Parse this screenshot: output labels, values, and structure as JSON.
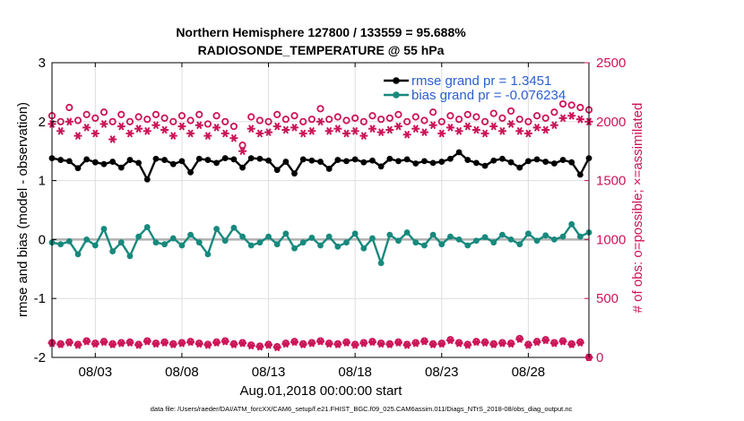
{
  "chart_data": {
    "type": "line",
    "title_line1": "Northern Hemisphere 127800 / 133559 = 95.688%",
    "title_line2": "RADIOSONDE_TEMPERATURE @ 55 hPa",
    "xlabel": "Aug.01,2018 00:00:00 start",
    "ylabel_left": "rmse and bias (model - observation)",
    "ylabel_right": "# of obs: o=possible; ×=assimilated",
    "xlim": [
      0.5,
      31.5
    ],
    "ylim_left": [
      -2,
      3
    ],
    "ylim_right": [
      0,
      2500
    ],
    "x_ticks": [
      3,
      8,
      13,
      18,
      23,
      28
    ],
    "x_tick_labels": [
      "08/03",
      "08/08",
      "08/13",
      "08/18",
      "08/23",
      "08/28"
    ],
    "y_ticks_left": [
      -2,
      -1,
      0,
      1,
      2,
      3
    ],
    "y_ticks_right": [
      0,
      500,
      1000,
      1500,
      2000,
      2500
    ],
    "grid": true,
    "legend": [
      {
        "label": "rmse grand pr = 1.3451",
        "color": "#000000"
      },
      {
        "label": "bias grand pr = -0.076234",
        "color": "#17897d"
      }
    ],
    "colors": {
      "rmse": "#000000",
      "bias": "#17897d",
      "obs": "#cc1458",
      "zero_line": "#b0b0b0",
      "grid": "#dddddd"
    },
    "series": [
      {
        "name": "rmse",
        "x": [
          0.5,
          1.0,
          1.5,
          2.0,
          2.5,
          3.0,
          3.5,
          4.0,
          4.5,
          5.0,
          5.5,
          6.0,
          6.5,
          7.0,
          7.5,
          8.0,
          8.5,
          9.0,
          9.5,
          10.0,
          10.5,
          11.0,
          11.5,
          12.0,
          12.5,
          13.0,
          13.5,
          14.0,
          14.5,
          15.0,
          15.5,
          16.0,
          16.5,
          17.0,
          17.5,
          18.0,
          18.5,
          19.0,
          19.5,
          20.0,
          20.5,
          21.0,
          21.5,
          22.0,
          22.5,
          23.0,
          23.5,
          24.0,
          24.5,
          25.0,
          25.5,
          26.0,
          26.5,
          27.0,
          27.5,
          28.0,
          28.5,
          29.0,
          29.5,
          30.0,
          30.5,
          31.0,
          31.5
        ],
        "values": [
          1.38,
          1.35,
          1.33,
          1.21,
          1.36,
          1.31,
          1.28,
          1.32,
          1.22,
          1.35,
          1.3,
          1.02,
          1.37,
          1.35,
          1.28,
          1.33,
          1.14,
          1.37,
          1.35,
          1.3,
          1.38,
          1.36,
          1.22,
          1.38,
          1.37,
          1.34,
          1.18,
          1.32,
          1.12,
          1.36,
          1.34,
          1.32,
          1.2,
          1.35,
          1.33,
          1.36,
          1.31,
          1.34,
          1.24,
          1.37,
          1.33,
          1.36,
          1.29,
          1.33,
          1.3,
          1.32,
          1.37,
          1.48,
          1.35,
          1.3,
          1.25,
          1.34,
          1.37,
          1.31,
          1.22,
          1.33,
          1.36,
          1.32,
          1.29,
          1.35,
          1.31,
          1.1,
          1.38
        ]
      },
      {
        "name": "bias",
        "x": [
          0.5,
          1.0,
          1.5,
          2.0,
          2.5,
          3.0,
          3.5,
          4.0,
          4.5,
          5.0,
          5.5,
          6.0,
          6.5,
          7.0,
          7.5,
          8.0,
          8.5,
          9.0,
          9.5,
          10.0,
          10.5,
          11.0,
          11.5,
          12.0,
          12.5,
          13.0,
          13.5,
          14.0,
          14.5,
          15.0,
          15.5,
          16.0,
          16.5,
          17.0,
          17.5,
          18.0,
          18.5,
          19.0,
          19.5,
          20.0,
          20.5,
          21.0,
          21.5,
          22.0,
          22.5,
          23.0,
          23.5,
          24.0,
          24.5,
          25.0,
          25.5,
          26.0,
          26.5,
          27.0,
          27.5,
          28.0,
          28.5,
          29.0,
          29.5,
          30.0,
          30.5,
          31.0,
          31.5
        ],
        "values": [
          -0.05,
          -0.08,
          -0.03,
          -0.25,
          0.0,
          -0.1,
          0.18,
          -0.2,
          -0.05,
          -0.28,
          0.05,
          0.21,
          -0.05,
          -0.08,
          0.02,
          -0.1,
          0.08,
          -0.05,
          -0.25,
          0.18,
          -0.02,
          0.2,
          0.05,
          -0.1,
          -0.05,
          0.05,
          -0.08,
          0.1,
          -0.15,
          -0.05,
          0.03,
          -0.1,
          0.05,
          -0.12,
          -0.05,
          0.1,
          -0.15,
          0.02,
          -0.4,
          0.08,
          -0.02,
          0.12,
          -0.05,
          -0.1,
          0.08,
          -0.08,
          0.05,
          0.0,
          -0.1,
          -0.02,
          0.04,
          -0.05,
          0.08,
          0.0,
          -0.08,
          0.1,
          -0.02,
          0.07,
          0.0,
          0.05,
          0.26,
          0.05,
          0.12
        ]
      },
      {
        "name": "obs_possible",
        "x": [
          0.5,
          1.0,
          1.5,
          2.0,
          2.5,
          3.0,
          3.5,
          4.0,
          4.5,
          5.0,
          5.5,
          6.0,
          6.5,
          7.0,
          7.5,
          8.0,
          8.5,
          9.0,
          9.5,
          10.0,
          10.5,
          11.0,
          11.5,
          12.0,
          12.5,
          13.0,
          13.5,
          14.0,
          14.5,
          15.0,
          15.5,
          16.0,
          16.5,
          17.0,
          17.5,
          18.0,
          18.5,
          19.0,
          19.5,
          20.0,
          20.5,
          21.0,
          21.5,
          22.0,
          22.5,
          23.0,
          23.5,
          24.0,
          24.5,
          25.0,
          25.5,
          26.0,
          26.5,
          27.0,
          27.5,
          28.0,
          28.5,
          29.0,
          29.5,
          30.0,
          30.5,
          31.0,
          31.5
        ],
        "values": [
          2050,
          2000,
          2120,
          2010,
          2060,
          2030,
          2080,
          2000,
          2060,
          2000,
          2040,
          2020,
          2060,
          2030,
          2000,
          2050,
          2010,
          2060,
          1980,
          2050,
          2000,
          1960,
          1800,
          2040,
          2010,
          2000,
          2060,
          2020,
          2050,
          2000,
          2020,
          2110,
          2020,
          2040,
          2010,
          2030,
          2000,
          2050,
          2020,
          2030,
          2060,
          2000,
          2040,
          2010,
          2080,
          2000,
          2050,
          2020,
          2060,
          2040,
          2000,
          2070,
          2030,
          2090,
          2020,
          2000,
          2050,
          2030,
          2080,
          2150,
          2140,
          2120,
          2100
        ]
      },
      {
        "name": "obs_assimilated",
        "x": [
          0.5,
          1.0,
          1.5,
          2.0,
          2.5,
          3.0,
          3.5,
          4.0,
          4.5,
          5.0,
          5.5,
          6.0,
          6.5,
          7.0,
          7.5,
          8.0,
          8.5,
          9.0,
          9.5,
          10.0,
          10.5,
          11.0,
          11.5,
          12.0,
          12.5,
          13.0,
          13.5,
          14.0,
          14.5,
          15.0,
          15.5,
          16.0,
          16.5,
          17.0,
          17.5,
          18.0,
          18.5,
          19.0,
          19.5,
          20.0,
          20.5,
          21.0,
          21.5,
          22.0,
          22.5,
          23.0,
          23.5,
          24.0,
          24.5,
          25.0,
          25.5,
          26.0,
          26.5,
          27.0,
          27.5,
          28.0,
          28.5,
          29.0,
          29.5,
          30.0,
          30.5,
          31.0,
          31.5
        ],
        "values": [
          1980,
          1920,
          2000,
          1880,
          1950,
          1900,
          1980,
          1850,
          1960,
          1900,
          1940,
          1920,
          1970,
          1930,
          1880,
          1960,
          1900,
          1970,
          1880,
          1950,
          1900,
          1860,
          1750,
          1940,
          1900,
          1910,
          1960,
          1930,
          1950,
          1900,
          1920,
          2000,
          1920,
          1940,
          1900,
          1920,
          1880,
          1940,
          1910,
          1930,
          1960,
          1890,
          1940,
          1910,
          1970,
          1900,
          1950,
          1920,
          1960,
          1930,
          1900,
          1960,
          1920,
          1980,
          1920,
          1900,
          1950,
          1930,
          1970,
          2030,
          2050,
          2020,
          2000
        ]
      },
      {
        "name": "obs_possible_pr",
        "x": [
          0.5,
          1.0,
          1.5,
          2.0,
          2.5,
          3.0,
          3.5,
          4.0,
          4.5,
          5.0,
          5.5,
          6.0,
          6.5,
          7.0,
          7.5,
          8.0,
          8.5,
          9.0,
          9.5,
          10.0,
          10.5,
          11.0,
          11.5,
          12.0,
          12.5,
          13.0,
          13.5,
          14.0,
          14.5,
          15.0,
          15.5,
          16.0,
          16.5,
          17.0,
          17.5,
          18.0,
          18.5,
          19.0,
          19.5,
          20.0,
          20.5,
          21.0,
          21.5,
          22.0,
          22.5,
          23.0,
          23.5,
          24.0,
          24.5,
          25.0,
          25.5,
          26.0,
          26.5,
          27.0,
          27.5,
          28.0,
          28.5,
          29.0,
          29.5,
          30.0,
          30.5,
          31.0,
          31.5
        ],
        "values": [
          125,
          115,
          130,
          110,
          140,
          120,
          135,
          115,
          125,
          130,
          110,
          140,
          120,
          130,
          115,
          125,
          135,
          120,
          110,
          130,
          140,
          115,
          125,
          105,
          95,
          110,
          90,
          120,
          135,
          115,
          125,
          140,
          120,
          115,
          130,
          110,
          125,
          135,
          120,
          115,
          130,
          110,
          125,
          140,
          115,
          120,
          150,
          125,
          110,
          135,
          130,
          115,
          125,
          120,
          160,
          110,
          135,
          150,
          125,
          140,
          115,
          130,
          0
        ]
      },
      {
        "name": "obs_assimilated_pr",
        "x": [
          0.5,
          1.0,
          1.5,
          2.0,
          2.5,
          3.0,
          3.5,
          4.0,
          4.5,
          5.0,
          5.5,
          6.0,
          6.5,
          7.0,
          7.5,
          8.0,
          8.5,
          9.0,
          9.5,
          10.0,
          10.5,
          11.0,
          11.5,
          12.0,
          12.5,
          13.0,
          13.5,
          14.0,
          14.5,
          15.0,
          15.5,
          16.0,
          16.5,
          17.0,
          17.5,
          18.0,
          18.5,
          19.0,
          19.5,
          20.0,
          20.5,
          21.0,
          21.5,
          22.0,
          22.5,
          23.0,
          23.5,
          24.0,
          24.5,
          25.0,
          25.5,
          26.0,
          26.5,
          27.0,
          27.5,
          28.0,
          28.5,
          29.0,
          29.5,
          30.0,
          30.5,
          31.0,
          31.5
        ],
        "values": [
          120,
          110,
          125,
          105,
          135,
          115,
          130,
          110,
          120,
          125,
          105,
          135,
          115,
          125,
          110,
          120,
          130,
          115,
          105,
          125,
          135,
          110,
          120,
          100,
          90,
          105,
          85,
          115,
          130,
          110,
          120,
          135,
          115,
          110,
          125,
          105,
          120,
          130,
          115,
          110,
          125,
          105,
          120,
          135,
          110,
          115,
          145,
          120,
          105,
          130,
          125,
          110,
          120,
          115,
          155,
          105,
          130,
          145,
          120,
          135,
          110,
          125,
          0
        ]
      }
    ],
    "footnote": "data file: /Users/raeder/DAI/ATM_forcXX/CAM6_setup/f.e21.FHIST_BGC.f09_025.CAM6assim.011/Diags_NTrS_2018-08/obs_diag_output.nc"
  }
}
